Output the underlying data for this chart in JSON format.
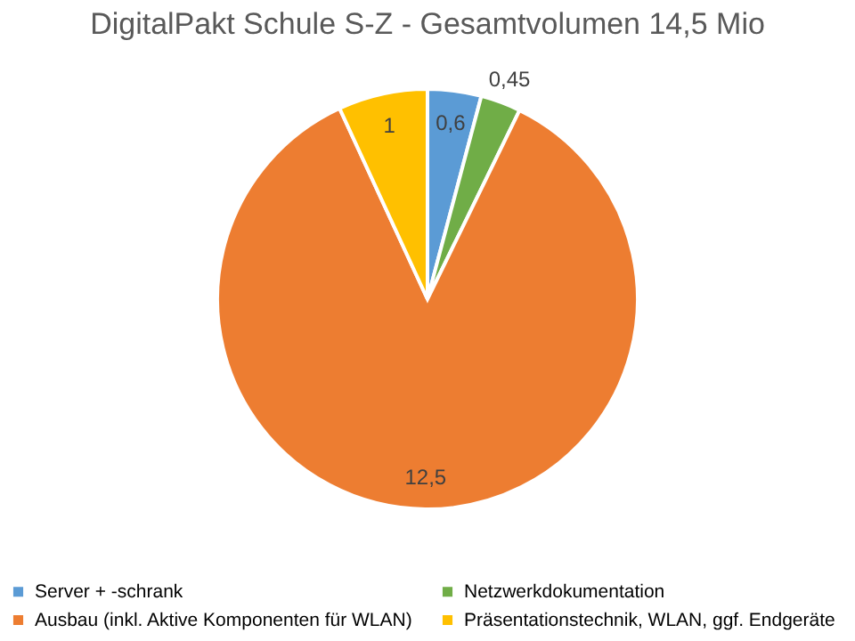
{
  "chart_data": {
    "type": "pie",
    "title": "DigitalPakt Schule S-Z - Gesamtvolumen 14,5 Mio",
    "categories": [
      "Server + -schrank",
      "Netzwerkdokumentation",
      "Ausbau (inkl. Aktive Komponenten für WLAN)",
      "Präsentationstechnik, WLAN, ggf. Endgeräte"
    ],
    "values": [
      0.6,
      0.45,
      12.5,
      1
    ],
    "colors": [
      "#5b9bd5",
      "#70ad47",
      "#ed7d31",
      "#ffc000"
    ],
    "value_labels": [
      "0,6",
      "0,45",
      "12,5",
      "1"
    ],
    "legend": "bottom"
  }
}
